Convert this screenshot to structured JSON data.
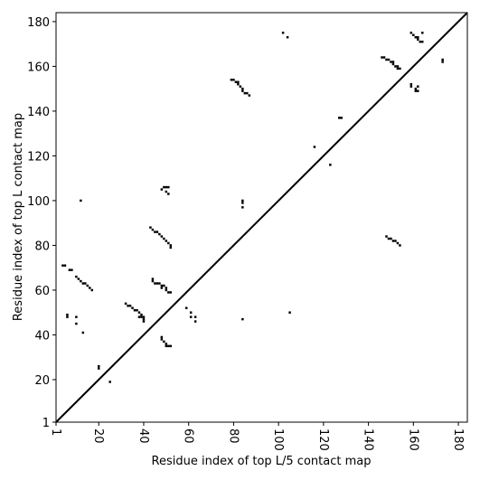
{
  "chart_data": {
    "type": "scatter",
    "xlabel": "Residue index of top L/5 contact map",
    "ylabel": "Residue index of top L contact map",
    "xlim": [
      1,
      184
    ],
    "ylim": [
      1,
      184
    ],
    "xticks": [
      1,
      20,
      40,
      60,
      80,
      100,
      120,
      140,
      160,
      180
    ],
    "yticks": [
      1,
      20,
      40,
      60,
      80,
      100,
      120,
      140,
      160,
      180
    ],
    "color": "#000000",
    "x": [
      4,
      5,
      7,
      8,
      10,
      11,
      12,
      13,
      14,
      15,
      16,
      17,
      6,
      6,
      10,
      10,
      13,
      12,
      20,
      20,
      25,
      32,
      33,
      34,
      35,
      36,
      37,
      38,
      39,
      40,
      39,
      38,
      40,
      40,
      43,
      44,
      45,
      46,
      47,
      48,
      49,
      50,
      51,
      52,
      52,
      44,
      44,
      45,
      46,
      47,
      48,
      48,
      49,
      50,
      50,
      51,
      52,
      48,
      49,
      50,
      51,
      50,
      51,
      48,
      48,
      49,
      50,
      50,
      51,
      52,
      59,
      61,
      61,
      63,
      63,
      79,
      80,
      81,
      82,
      82,
      83,
      84,
      84,
      85,
      86,
      87,
      84,
      84,
      84,
      84,
      102,
      104,
      105,
      116,
      123,
      127,
      128,
      146,
      147,
      148,
      149,
      150,
      151,
      151,
      152,
      153,
      153,
      154,
      148,
      149,
      150,
      151,
      152,
      153,
      154,
      159,
      159,
      161,
      162,
      161,
      162,
      159,
      160,
      161,
      162,
      162,
      163,
      164,
      164,
      173,
      173
    ],
    "values": [
      71,
      71,
      69,
      69,
      66,
      65,
      64,
      63,
      63,
      62,
      61,
      60,
      49,
      48,
      48,
      45,
      41,
      100,
      26,
      25,
      19,
      54,
      53,
      53,
      52,
      51,
      51,
      50,
      49,
      48,
      48,
      48,
      47,
      46,
      88,
      87,
      86,
      86,
      85,
      84,
      83,
      82,
      81,
      80,
      79,
      65,
      64,
      63,
      63,
      63,
      62,
      61,
      62,
      61,
      60,
      59,
      59,
      105,
      106,
      106,
      106,
      104,
      103,
      39,
      38,
      37,
      36,
      35,
      35,
      35,
      52,
      50,
      48,
      48,
      46,
      154,
      154,
      153,
      153,
      152,
      151,
      150,
      149,
      148,
      148,
      147,
      100,
      99,
      97,
      47,
      175,
      173,
      50,
      124,
      116,
      137,
      137,
      164,
      164,
      163,
      163,
      162,
      162,
      161,
      160,
      160,
      159,
      159,
      84,
      83,
      83,
      82,
      82,
      81,
      80,
      152,
      151,
      150,
      151,
      149,
      149,
      175,
      174,
      173,
      173,
      172,
      171,
      171,
      175,
      162,
      163
    ]
  }
}
